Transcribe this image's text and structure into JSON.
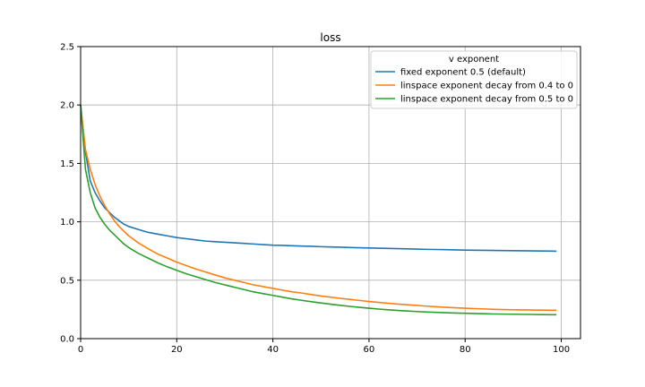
{
  "chart_data": {
    "type": "line",
    "title": "loss",
    "xlabel": "",
    "ylabel": "",
    "xlim": [
      0,
      104
    ],
    "ylim": [
      0,
      2.5
    ],
    "x_ticks": [
      0,
      20,
      40,
      60,
      80,
      100
    ],
    "y_ticks": [
      0.0,
      0.5,
      1.0,
      1.5,
      2.0,
      2.5
    ],
    "x_tick_labels": [
      "0",
      "20",
      "40",
      "60",
      "80",
      "100"
    ],
    "y_tick_labels": [
      "0.0",
      "0.5",
      "1.0",
      "1.5",
      "2.0",
      "2.5"
    ],
    "grid": true,
    "legend": {
      "title": "v exponent",
      "placement": "top-right"
    },
    "series": [
      {
        "name": "fixed exponent 0.5 (default)",
        "color": "#1f77b4",
        "x": [
          0,
          1,
          2,
          3,
          4,
          5,
          6,
          7,
          8,
          9,
          10,
          12,
          14,
          16,
          18,
          20,
          22,
          24,
          26,
          28,
          30,
          32,
          34,
          36,
          38,
          40,
          42,
          44,
          46,
          48,
          50,
          52,
          54,
          56,
          58,
          60,
          62,
          64,
          66,
          68,
          70,
          72,
          74,
          76,
          78,
          80,
          82,
          84,
          86,
          88,
          90,
          92,
          94,
          96,
          98,
          99
        ],
        "y": [
          2.0,
          1.6,
          1.35,
          1.25,
          1.18,
          1.12,
          1.08,
          1.04,
          1.01,
          0.98,
          0.96,
          0.935,
          0.91,
          0.895,
          0.88,
          0.865,
          0.855,
          0.845,
          0.835,
          0.83,
          0.825,
          0.82,
          0.815,
          0.81,
          0.805,
          0.8,
          0.798,
          0.795,
          0.792,
          0.79,
          0.787,
          0.785,
          0.783,
          0.78,
          0.778,
          0.776,
          0.774,
          0.772,
          0.77,
          0.768,
          0.766,
          0.764,
          0.763,
          0.762,
          0.76,
          0.758,
          0.757,
          0.756,
          0.755,
          0.754,
          0.753,
          0.752,
          0.751,
          0.75,
          0.749,
          0.748
        ]
      },
      {
        "name": "linspace exponent decay from 0.4 to 0",
        "color": "#ff7f0e",
        "x": [
          0,
          1,
          2,
          3,
          4,
          5,
          6,
          7,
          8,
          9,
          10,
          12,
          14,
          16,
          18,
          20,
          22,
          24,
          26,
          28,
          30,
          32,
          34,
          36,
          38,
          40,
          42,
          44,
          46,
          48,
          50,
          52,
          54,
          56,
          58,
          60,
          62,
          64,
          66,
          68,
          70,
          72,
          74,
          76,
          78,
          80,
          82,
          84,
          86,
          88,
          90,
          92,
          94,
          96,
          98,
          99
        ],
        "y": [
          2.0,
          1.62,
          1.45,
          1.32,
          1.22,
          1.14,
          1.07,
          1.01,
          0.96,
          0.92,
          0.88,
          0.82,
          0.77,
          0.725,
          0.69,
          0.655,
          0.625,
          0.595,
          0.57,
          0.545,
          0.52,
          0.5,
          0.48,
          0.46,
          0.445,
          0.43,
          0.415,
          0.4,
          0.39,
          0.377,
          0.365,
          0.355,
          0.345,
          0.336,
          0.327,
          0.318,
          0.31,
          0.303,
          0.296,
          0.29,
          0.284,
          0.278,
          0.273,
          0.268,
          0.264,
          0.26,
          0.257,
          0.254,
          0.251,
          0.249,
          0.247,
          0.246,
          0.245,
          0.244,
          0.243,
          0.243
        ]
      },
      {
        "name": "linspace exponent decay from 0.5 to 0",
        "color": "#2ca02c",
        "x": [
          0,
          1,
          2,
          3,
          4,
          5,
          6,
          7,
          8,
          9,
          10,
          12,
          14,
          16,
          18,
          20,
          22,
          24,
          26,
          28,
          30,
          32,
          34,
          36,
          38,
          40,
          42,
          44,
          46,
          48,
          50,
          52,
          54,
          56,
          58,
          60,
          62,
          64,
          66,
          68,
          70,
          72,
          74,
          76,
          78,
          80,
          82,
          84,
          86,
          88,
          90,
          92,
          94,
          96,
          98,
          99
        ],
        "y": [
          2.0,
          1.45,
          1.25,
          1.12,
          1.04,
          0.98,
          0.93,
          0.89,
          0.85,
          0.81,
          0.78,
          0.73,
          0.69,
          0.65,
          0.615,
          0.585,
          0.555,
          0.53,
          0.505,
          0.48,
          0.46,
          0.44,
          0.42,
          0.4,
          0.385,
          0.37,
          0.355,
          0.34,
          0.328,
          0.316,
          0.305,
          0.295,
          0.285,
          0.276,
          0.268,
          0.26,
          0.253,
          0.247,
          0.241,
          0.236,
          0.232,
          0.228,
          0.225,
          0.222,
          0.219,
          0.217,
          0.215,
          0.213,
          0.211,
          0.21,
          0.209,
          0.208,
          0.207,
          0.206,
          0.205,
          0.205
        ]
      }
    ]
  }
}
